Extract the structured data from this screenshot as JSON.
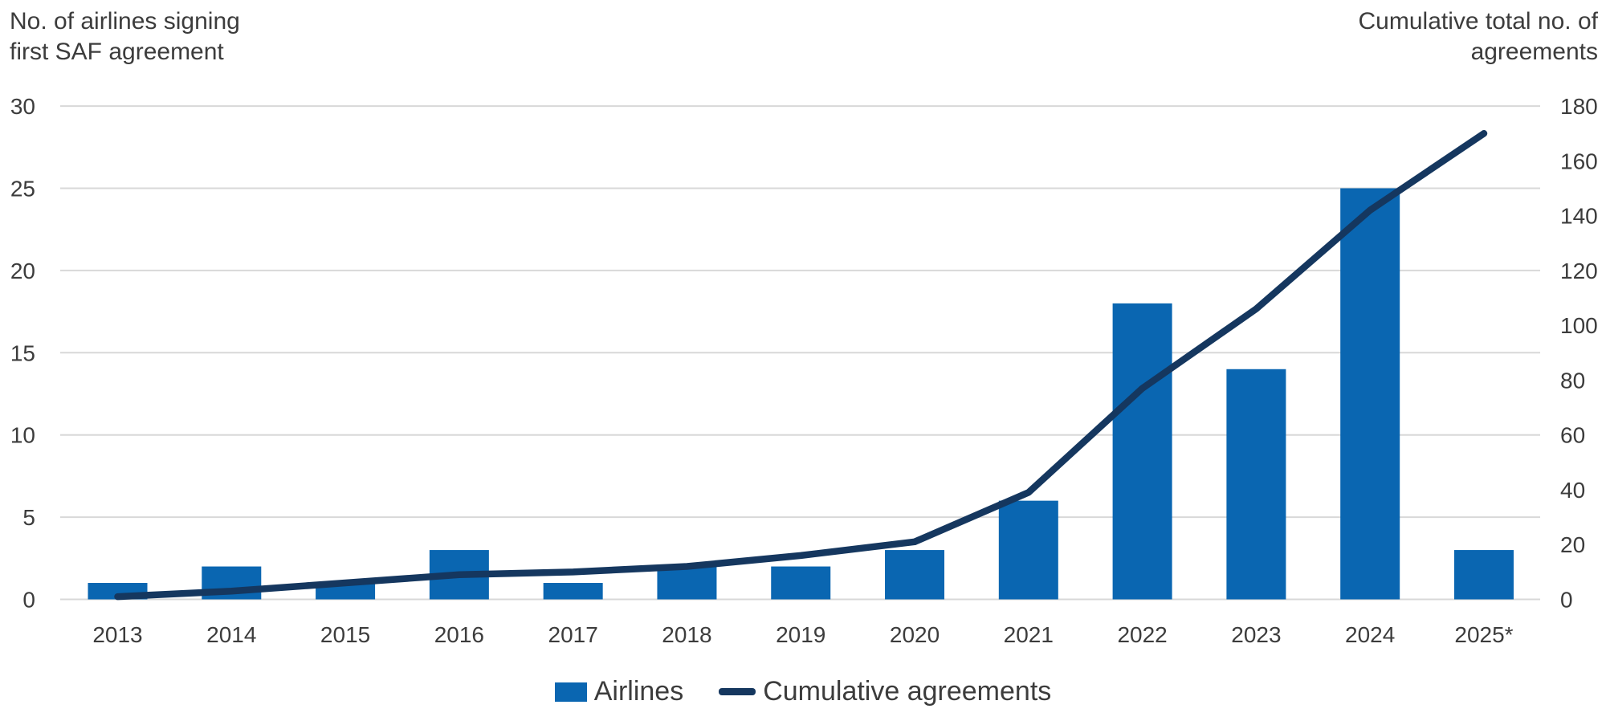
{
  "page": {
    "background": "#ffffff"
  },
  "axis_titles": {
    "left": [
      "No. of airlines signing",
      "first SAF agreement"
    ],
    "right": [
      "Cumulative total no. of",
      "agreements"
    ]
  },
  "legend": {
    "items": [
      {
        "label": "Airlines",
        "marker": "bar-swatch"
      },
      {
        "label": "Cumulative agreements",
        "marker": "line-swatch"
      }
    ]
  },
  "chart_data": {
    "type": "combo_bar_line_dual_axis",
    "categories": [
      "2013",
      "2014",
      "2015",
      "2016",
      "2017",
      "2018",
      "2019",
      "2020",
      "2021",
      "2022",
      "2023",
      "2024",
      "2025*"
    ],
    "series": [
      {
        "name": "Airlines",
        "type": "bar",
        "axis": "left",
        "values": [
          1,
          2,
          1,
          3,
          1,
          2,
          2,
          3,
          6,
          18,
          14,
          25,
          3
        ]
      },
      {
        "name": "Cumulative agreements",
        "type": "line",
        "axis": "right",
        "values": [
          1,
          3,
          6,
          9,
          10,
          12,
          16,
          21,
          39,
          77,
          106,
          142,
          170
        ]
      }
    ],
    "left_axis": {
      "label": "No. of airlines signing first SAF agreement",
      "range": [
        0,
        30
      ],
      "tick_step": 5,
      "ticks": [
        0,
        5,
        10,
        15,
        20,
        25,
        30
      ]
    },
    "right_axis": {
      "label": "Cumulative total no. of agreements",
      "range": [
        0,
        180
      ],
      "tick_step": 20,
      "ticks": [
        0,
        20,
        40,
        60,
        80,
        100,
        120,
        140,
        160,
        180
      ]
    },
    "grid": {
      "horizontal": true,
      "vertical": false,
      "at": "left_axis_ticks"
    },
    "legend_position": "bottom-center",
    "colors": {
      "bar": "#0a66b1",
      "line": "#15375f",
      "grid": "#d8d8d8",
      "text": "#3c3c3c"
    }
  }
}
